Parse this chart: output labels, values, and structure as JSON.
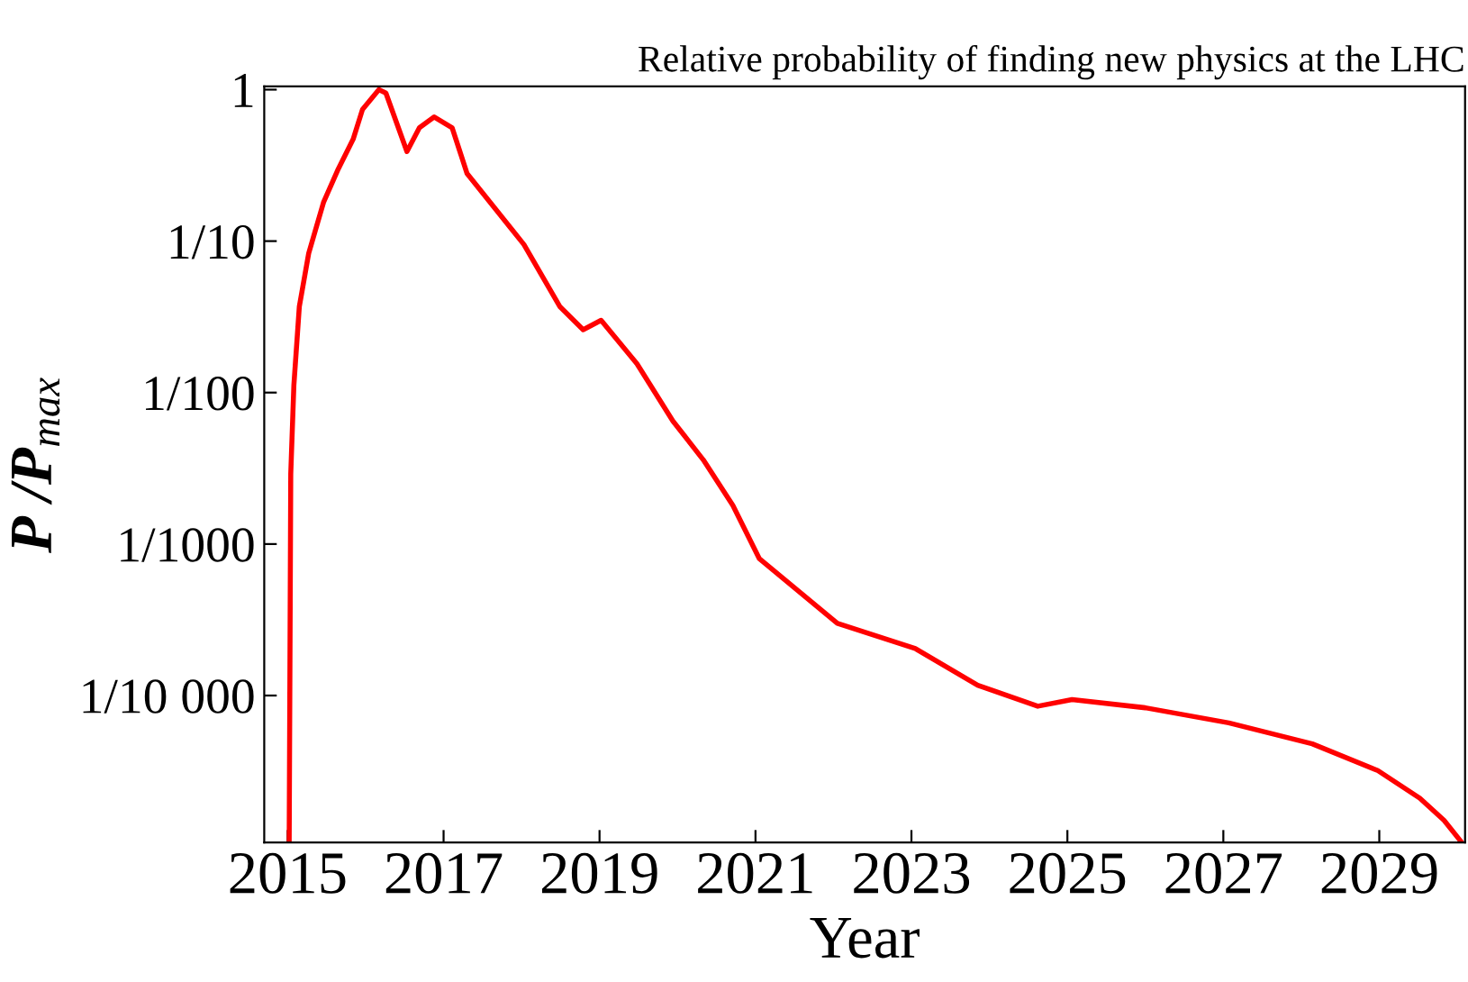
{
  "chart_data": {
    "type": "line",
    "title": "Relative probability of finding new physics at the LHC",
    "xlabel": "Year",
    "ylabel": "P /P$_{max}$",
    "x": [
      2015.02,
      2015.04,
      2015.08,
      2015.15,
      2015.27,
      2015.46,
      2015.65,
      2015.84,
      2015.96,
      2016.17,
      2016.26,
      2016.53,
      2016.69,
      2016.88,
      2017.11,
      2017.3,
      2018.03,
      2018.49,
      2018.79,
      2019.02,
      2019.48,
      2019.94,
      2020.33,
      2020.71,
      2021.05,
      2022.05,
      2023.05,
      2023.85,
      2024.62,
      2025.06,
      2026.0,
      2027.07,
      2028.14,
      2028.98,
      2029.52,
      2029.83,
      2030.04
    ],
    "series": [
      {
        "color": "#ff0000",
        "values": [
          1.1e-05,
          0.0029,
          0.0112,
          0.037,
          0.083,
          0.18,
          0.3,
          0.47,
          0.74,
          1.0,
          0.95,
          0.39,
          0.56,
          0.66,
          0.56,
          0.28,
          0.095,
          0.037,
          0.026,
          0.03,
          0.0155,
          0.0065,
          0.0036,
          0.0018,
          0.0008,
          0.0003,
          0.000204,
          0.000117,
          8.5e-05,
          9.4e-05,
          8.3e-05,
          6.6e-05,
          4.8e-05,
          3.2e-05,
          2.1e-05,
          1.5e-05,
          1.1e-05
        ]
      }
    ],
    "log": "y",
    "xlim": [
      2014.7,
      2030.1
    ],
    "ylim": [
      1.07e-05,
      1.05
    ],
    "xticks": [
      2015,
      2017,
      2019,
      2021,
      2023,
      2025,
      2027,
      2029
    ],
    "yticks": [
      1,
      {
        "value": 0.1,
        "label": "1/10"
      },
      {
        "value": 0.01,
        "label": "1/100"
      },
      {
        "value": 0.001,
        "label": "1/1000"
      },
      {
        "value": 0.0001,
        "label": "1/10 000"
      }
    ],
    "grid": false,
    "marker": "none",
    "line_style": "solid"
  }
}
